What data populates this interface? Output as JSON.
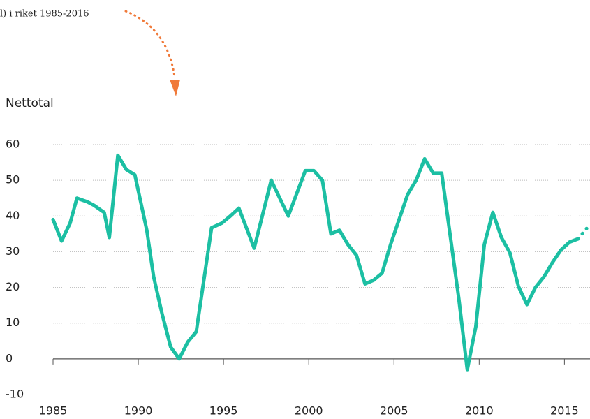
{
  "chart_data": {
    "type": "line",
    "title": "l) i riket 1985-2016",
    "y_label": "Nettotal",
    "x": [
      1985,
      1985.5,
      1986,
      1986.4,
      1987,
      1987.4,
      1988,
      1988.3,
      1988.8,
      1989.3,
      1989.8,
      1990.5,
      1990.9,
      1991.4,
      1991.9,
      1992.4,
      1992.9,
      1993.4,
      1994.3,
      1994.9,
      1995.4,
      1995.9,
      1996.8,
      1997.8,
      1998.8,
      1999.8,
      2000.3,
      2000.8,
      2001.3,
      2001.8,
      2002.3,
      2002.8,
      2003.3,
      2003.8,
      2004.3,
      2004.8,
      2005.8,
      2006.3,
      2006.8,
      2007.3,
      2007.8,
      2008.8,
      2009.3,
      2009.8,
      2010.3,
      2010.8,
      2011.3,
      2011.8,
      2012.3,
      2012.8,
      2013.3,
      2013.8,
      2014.3,
      2014.8,
      2015.3,
      2015.8,
      2016.3
    ],
    "series": [
      {
        "color": "#1cbfa3",
        "style": "solid",
        "values": [
          39,
          33,
          38,
          45,
          44,
          43,
          41,
          34,
          57,
          53,
          51.5,
          36,
          23,
          12.5,
          3.3,
          0,
          4.7,
          7.6,
          36.7,
          38,
          40,
          42.2,
          31,
          50,
          40,
          52.7,
          52.7,
          50,
          35,
          36,
          32,
          29,
          21,
          22,
          24,
          32,
          46,
          50,
          56,
          52,
          52,
          17,
          -3,
          9,
          32,
          41,
          34,
          29.7,
          20.3,
          15.2,
          20,
          23,
          27,
          30.5,
          32.7,
          33.6,
          null
        ]
      },
      {
        "color": "#1cbfa3",
        "style": "dotted",
        "values": [
          null,
          null,
          null,
          null,
          null,
          null,
          null,
          null,
          null,
          null,
          null,
          null,
          null,
          null,
          null,
          null,
          null,
          null,
          null,
          null,
          null,
          null,
          null,
          null,
          null,
          null,
          null,
          null,
          null,
          null,
          null,
          null,
          null,
          null,
          null,
          null,
          null,
          null,
          null,
          null,
          null,
          null,
          null,
          null,
          null,
          null,
          null,
          null,
          null,
          null,
          null,
          null,
          null,
          null,
          null,
          33.6,
          36.5
        ]
      }
    ],
    "xlim": [
      1985,
      2016.5
    ],
    "ylim": [
      -10,
      60
    ],
    "xticks": [
      1985,
      1990,
      1995,
      2000,
      2005,
      2010,
      2015
    ],
    "yticks": [
      -10,
      0,
      10,
      20,
      30,
      40,
      50,
      60
    ],
    "grid": true
  }
}
